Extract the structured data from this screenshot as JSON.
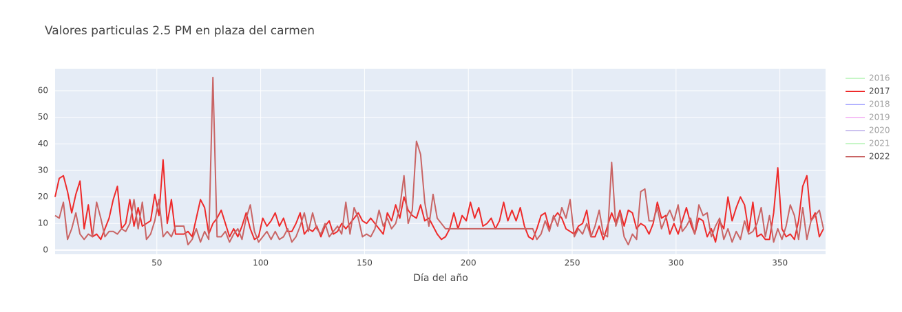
{
  "chart_data": {
    "type": "line",
    "title": "Valores particulas 2.5 PM en plaza del carmen",
    "x_label": "Día del año",
    "x": [
      1,
      3,
      5,
      7,
      9,
      11,
      13,
      15,
      17,
      19,
      21,
      23,
      25,
      27,
      29,
      31,
      33,
      35,
      37,
      39,
      41,
      43,
      45,
      47,
      49,
      51,
      53,
      55,
      57,
      59,
      61,
      63,
      65,
      67,
      69,
      71,
      73,
      75,
      77,
      79,
      81,
      83,
      85,
      87,
      89,
      91,
      93,
      95,
      97,
      99,
      101,
      103,
      105,
      107,
      109,
      111,
      113,
      115,
      117,
      119,
      121,
      123,
      125,
      127,
      129,
      131,
      133,
      135,
      137,
      139,
      141,
      143,
      145,
      147,
      149,
      151,
      153,
      155,
      157,
      159,
      161,
      163,
      165,
      167,
      169,
      171,
      173,
      175,
      177,
      179,
      181,
      183,
      185,
      187,
      189,
      191,
      193,
      195,
      197,
      199,
      201,
      203,
      205,
      207,
      209,
      211,
      213,
      215,
      217,
      219,
      221,
      223,
      225,
      227,
      229,
      231,
      233,
      235,
      237,
      239,
      241,
      243,
      245,
      247,
      249,
      251,
      253,
      255,
      257,
      259,
      261,
      263,
      265,
      267,
      269,
      271,
      273,
      275,
      277,
      279,
      281,
      283,
      285,
      287,
      289,
      291,
      293,
      295,
      297,
      299,
      301,
      303,
      305,
      307,
      309,
      311,
      313,
      315,
      317,
      319,
      321,
      323,
      325,
      327,
      329,
      331,
      333,
      335,
      337,
      339,
      341,
      343,
      345,
      347,
      349,
      351,
      353,
      355,
      357,
      359,
      361,
      363,
      365,
      367,
      369,
      371
    ],
    "series": [
      {
        "name": "2016",
        "color": "#90ee90",
        "visible": "legendonly"
      },
      {
        "name": "2017",
        "color": "#ee2a2a",
        "values": [
          20,
          27,
          28,
          22,
          14,
          21,
          26,
          8,
          17,
          5,
          6,
          4,
          8,
          12,
          19,
          24,
          8,
          10,
          19,
          9,
          16,
          9,
          10,
          11,
          21,
          13,
          34,
          10,
          19,
          6,
          6,
          6,
          7,
          5,
          12,
          19,
          16,
          6,
          10,
          12,
          15,
          10,
          5,
          8,
          5,
          9,
          14,
          8,
          4,
          5,
          12,
          9,
          11,
          14,
          9,
          12,
          7,
          7,
          10,
          14,
          6,
          8,
          7,
          9,
          5,
          9,
          11,
          6,
          7,
          10,
          8,
          10,
          12,
          14,
          11,
          10,
          12,
          10,
          8,
          6,
          14,
          11,
          17,
          12,
          20,
          15,
          13,
          12,
          17,
          11,
          12,
          9,
          6,
          4,
          5,
          8,
          14,
          8,
          13,
          11,
          18,
          12,
          16,
          9,
          10,
          12,
          8,
          11,
          18,
          11,
          15,
          11,
          16,
          9,
          5,
          4,
          8,
          13,
          14,
          8,
          12,
          14,
          12,
          8,
          7,
          6,
          9,
          10,
          15,
          5,
          5,
          9,
          4,
          9,
          14,
          10,
          15,
          9,
          15,
          14,
          8,
          10,
          9,
          6,
          10,
          18,
          12,
          13,
          6,
          10,
          6,
          11,
          16,
          10,
          6,
          12,
          11,
          5,
          8,
          3,
          11,
          8,
          20,
          11,
          16,
          20,
          17,
          7,
          18,
          5,
          6,
          4,
          4,
          14,
          31,
          8,
          5,
          6,
          4,
          11,
          24,
          28,
          11,
          14,
          5,
          8
        ]
      },
      {
        "name": "2018",
        "color": "#6a6aff",
        "visible": "legendonly"
      },
      {
        "name": "2019",
        "color": "#ee82ee",
        "visible": "legendonly"
      },
      {
        "name": "2020",
        "color": "#9a86e0",
        "visible": "legendonly"
      },
      {
        "name": "2021",
        "color": "#90ee90",
        "visible": "legendonly"
      },
      {
        "name": "2022",
        "color": "#c96565",
        "values": [
          13,
          12,
          18,
          4,
          8,
          14,
          6,
          4,
          6,
          5,
          18,
          12,
          5,
          7,
          7,
          6,
          8,
          7,
          10,
          19,
          8,
          18,
          4,
          6,
          11,
          19,
          5,
          7,
          5,
          9,
          9,
          9,
          2,
          4,
          8,
          3,
          7,
          4,
          65,
          5,
          5,
          7,
          3,
          6,
          8,
          4,
          12,
          17,
          7,
          3,
          5,
          7,
          4,
          7,
          4,
          5,
          8,
          3,
          5,
          9,
          14,
          7,
          14,
          8,
          6,
          10,
          5,
          7,
          9,
          6,
          18,
          6,
          16,
          12,
          5,
          6,
          5,
          8,
          15,
          9,
          12,
          8,
          10,
          16,
          28,
          10,
          15,
          41,
          36,
          18,
          9,
          21,
          12,
          10,
          8,
          8,
          8,
          8,
          8,
          8,
          8,
          8,
          8,
          8,
          8,
          8,
          8,
          8,
          8,
          8,
          8,
          8,
          8,
          8,
          8,
          8,
          4,
          6,
          11,
          7,
          13,
          9,
          16,
          12,
          19,
          5,
          8,
          6,
          10,
          5,
          9,
          15,
          6,
          5,
          33,
          9,
          14,
          5,
          2,
          6,
          4,
          22,
          23,
          11,
          11,
          16,
          8,
          12,
          15,
          11,
          17,
          7,
          9,
          12,
          6,
          17,
          13,
          14,
          5,
          9,
          12,
          4,
          8,
          3,
          7,
          4,
          11,
          6,
          7,
          10,
          16,
          5,
          13,
          3,
          8,
          4,
          9,
          17,
          13,
          4,
          16,
          4,
          11,
          13,
          15,
          8
        ]
      }
    ],
    "xlim": [
      1,
      372
    ],
    "xticks": [
      50,
      100,
      150,
      200,
      250,
      300,
      350
    ],
    "ylim": [
      -1.6,
      68.3
    ],
    "yticks": [
      0,
      10,
      20,
      30,
      40,
      50,
      60
    ],
    "grid": true,
    "legend": "right"
  }
}
